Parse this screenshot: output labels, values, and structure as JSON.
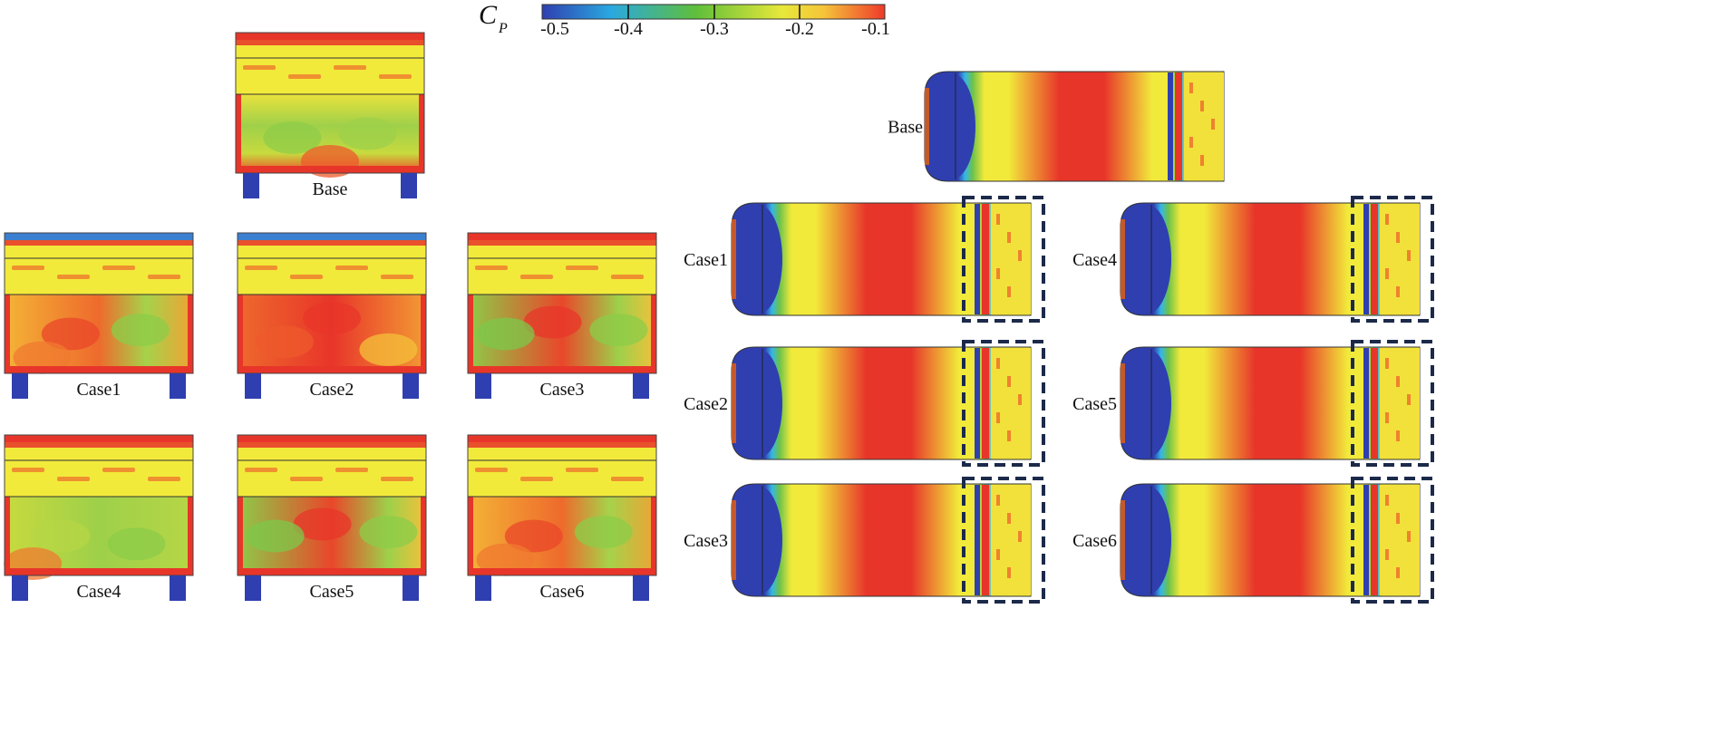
{
  "colorbar": {
    "symbol": "C",
    "subscript": "P",
    "ticks": [
      "-0.5",
      "-0.4",
      "-0.3",
      "-0.2",
      "-0.1"
    ],
    "colors": [
      "#2f3fb0",
      "#2aa8e0",
      "#5fbf3a",
      "#e8e83a",
      "#f5c53a",
      "#ee3a2a"
    ]
  },
  "rear_views": [
    {
      "label": "Base",
      "theme": "base"
    },
    {
      "label": "Case1",
      "theme": "warm"
    },
    {
      "label": "Case2",
      "theme": "hot"
    },
    {
      "label": "Case3",
      "theme": "mixed"
    },
    {
      "label": "Case4",
      "theme": "cool"
    },
    {
      "label": "Case5",
      "theme": "mixed"
    },
    {
      "label": "Case6",
      "theme": "warm"
    }
  ],
  "side_views": [
    {
      "label": "Base",
      "highlighted": false
    },
    {
      "label": "Case1",
      "highlighted": true
    },
    {
      "label": "Case2",
      "highlighted": true
    },
    {
      "label": "Case3",
      "highlighted": true
    },
    {
      "label": "Case4",
      "highlighted": true
    },
    {
      "label": "Case5",
      "highlighted": true
    },
    {
      "label": "Case6",
      "highlighted": true
    }
  ],
  "palette": {
    "blue": "#2f3fb0",
    "cyan": "#35b6e6",
    "green": "#6cc24a",
    "yellow": "#f2ea3a",
    "orange": "#f7a33a",
    "red": "#e8352a",
    "dash": "#1c2a4a"
  }
}
